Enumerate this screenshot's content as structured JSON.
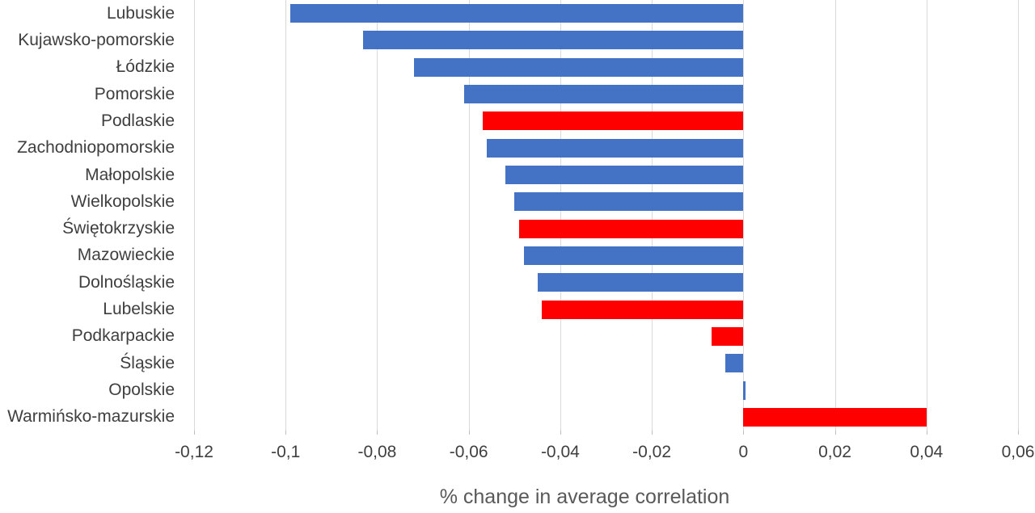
{
  "chart_data": {
    "type": "bar",
    "orientation": "horizontal",
    "title": "",
    "xlabel": "% change in average correlation",
    "ylabel": "",
    "xlim": [
      -0.12,
      0.06
    ],
    "grid": true,
    "legend": false,
    "categories": [
      "Lubuskie",
      "Kujawsko-pomorskie",
      "Łódzkie",
      "Pomorskie",
      "Podlaskie",
      "Zachodniopomorskie",
      "Małopolskie",
      "Wielkopolskie",
      "Świętokrzyskie",
      "Mazowieckie",
      "Dolnośląskie",
      "Lubelskie",
      "Podkarpackie",
      "Śląskie",
      "Opolskie",
      "Warmińsko-mazurskie"
    ],
    "values": [
      -0.099,
      -0.083,
      -0.072,
      -0.061,
      -0.057,
      -0.056,
      -0.052,
      -0.05,
      -0.049,
      -0.048,
      -0.045,
      -0.044,
      -0.007,
      -0.004,
      0.0005,
      0.04
    ],
    "bar_colors": [
      "#4472C4",
      "#4472C4",
      "#4472C4",
      "#4472C4",
      "#FF0000",
      "#4472C4",
      "#4472C4",
      "#4472C4",
      "#FF0000",
      "#4472C4",
      "#4472C4",
      "#FF0000",
      "#FF0000",
      "#4472C4",
      "#4472C4",
      "#FF0000"
    ],
    "x_ticks": [
      {
        "value": -0.12,
        "label": "-0,12"
      },
      {
        "value": -0.1,
        "label": "-0,1"
      },
      {
        "value": -0.08,
        "label": "-0,08"
      },
      {
        "value": -0.06,
        "label": "-0,06"
      },
      {
        "value": -0.04,
        "label": "-0,04"
      },
      {
        "value": -0.02,
        "label": "-0,02"
      },
      {
        "value": 0,
        "label": "0"
      },
      {
        "value": 0.02,
        "label": "0,02"
      },
      {
        "value": 0.04,
        "label": "0,04"
      },
      {
        "value": 0.06,
        "label": "0,06"
      }
    ],
    "colors": {
      "default_bar": "#4472C4",
      "highlight_bar": "#FF0000",
      "gridline": "#d9d9d9",
      "tick_mark": "#bfbfbf",
      "label_text": "#3f3f3f",
      "axis_title_text": "#595959",
      "background": "#ffffff"
    }
  }
}
